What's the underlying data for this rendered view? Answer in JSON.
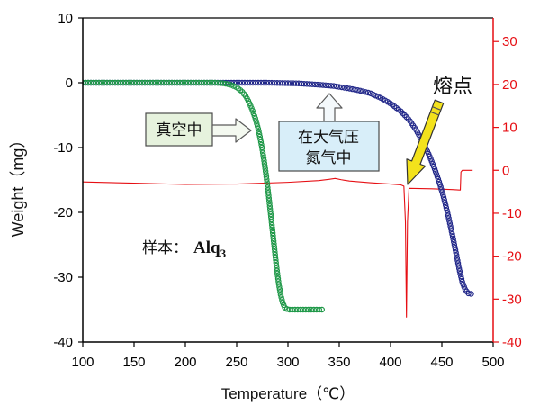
{
  "chart_data": {
    "type": "scatter",
    "xlabel": "Temperature（℃）",
    "ylabel": "Weight（mg）",
    "xlim": [
      100,
      500
    ],
    "ylim": [
      -40,
      10
    ],
    "y2lim": [
      -40,
      35.5
    ],
    "xticks": [
      100,
      150,
      200,
      250,
      300,
      350,
      400,
      450,
      500
    ],
    "yticks": [
      10,
      0,
      -10,
      -20,
      -30,
      -40
    ],
    "y2ticks": [
      30,
      20,
      10,
      0,
      -10,
      -20,
      -30,
      -40
    ],
    "grid": false,
    "series": [
      {
        "axis": "left",
        "marker": "circle",
        "color": "#1f9848",
        "points": [
          [
            100,
            0
          ],
          [
            150,
            0
          ],
          [
            200,
            0
          ],
          [
            230,
            0
          ],
          [
            238,
            -0.1
          ],
          [
            244,
            -0.3
          ],
          [
            250,
            -0.7
          ],
          [
            255,
            -1.3
          ],
          [
            259,
            -2.1
          ],
          [
            262,
            -3.0
          ],
          [
            265,
            -4.1
          ],
          [
            268,
            -5.4
          ],
          [
            271,
            -7.1
          ],
          [
            273,
            -8.6
          ],
          [
            275,
            -10.3
          ],
          [
            277,
            -12.3
          ],
          [
            279,
            -14.6
          ],
          [
            281,
            -17.2
          ],
          [
            283,
            -20.0
          ],
          [
            285,
            -22.9
          ],
          [
            287,
            -25.8
          ],
          [
            289,
            -28.6
          ],
          [
            291,
            -31.0
          ],
          [
            293,
            -32.8
          ],
          [
            295,
            -34.0
          ],
          [
            297,
            -34.7
          ],
          [
            300,
            -35.0
          ],
          [
            335,
            -35.0
          ]
        ]
      },
      {
        "axis": "left",
        "marker": "circle",
        "color": "#23298a",
        "points": [
          [
            100,
            0
          ],
          [
            200,
            0
          ],
          [
            280,
            0
          ],
          [
            310,
            -0.1
          ],
          [
            330,
            -0.3
          ],
          [
            345,
            -0.5
          ],
          [
            360,
            -0.9
          ],
          [
            370,
            -1.2
          ],
          [
            380,
            -1.6
          ],
          [
            390,
            -2.3
          ],
          [
            400,
            -3.2
          ],
          [
            410,
            -4.4
          ],
          [
            418,
            -5.7
          ],
          [
            425,
            -7.3
          ],
          [
            432,
            -9.3
          ],
          [
            438,
            -11.3
          ],
          [
            443,
            -13.3
          ],
          [
            448,
            -15.6
          ],
          [
            452,
            -17.8
          ],
          [
            456,
            -20.4
          ],
          [
            460,
            -23.3
          ],
          [
            464,
            -26.4
          ],
          [
            467,
            -28.8
          ],
          [
            470,
            -30.8
          ],
          [
            473,
            -32.0
          ],
          [
            476,
            -32.5
          ],
          [
            480,
            -32.6
          ]
        ]
      },
      {
        "axis": "right",
        "marker": "none",
        "color": "#e60f14",
        "points": [
          [
            100,
            -2.7
          ],
          [
            150,
            -3.0
          ],
          [
            200,
            -3.3
          ],
          [
            250,
            -3.2
          ],
          [
            300,
            -2.8
          ],
          [
            330,
            -2.4
          ],
          [
            340,
            -2.1
          ],
          [
            346,
            -1.9
          ],
          [
            352,
            -2.2
          ],
          [
            360,
            -2.5
          ],
          [
            380,
            -2.9
          ],
          [
            400,
            -3.2
          ],
          [
            410,
            -3.4
          ],
          [
            413,
            -3.7
          ],
          [
            414.5,
            -12
          ],
          [
            415.5,
            -34.2
          ],
          [
            416.5,
            -12
          ],
          [
            418,
            -4.2
          ],
          [
            440,
            -4.3
          ],
          [
            460,
            -4.5
          ],
          [
            468,
            -4.6
          ],
          [
            468.6,
            -0.4
          ],
          [
            470,
            0
          ],
          [
            480,
            0
          ]
        ]
      }
    ],
    "annotations": {
      "melting_point": "熔点",
      "vacuum": "真空中",
      "nitrogen_lines": [
        "在大气压",
        "氮气中"
      ],
      "sample_prefix": "样本：",
      "sample_name": "Alq",
      "sample_subscript": "3"
    },
    "colors": {
      "left_axis": "#000000",
      "right_axis": "#e60f14",
      "melting_point_text": "#e60f14",
      "melting_point_arrow": "#f3e21c",
      "vacuum_box": "#e6f2dd",
      "nitrogen_box": "#d8eef9"
    }
  }
}
